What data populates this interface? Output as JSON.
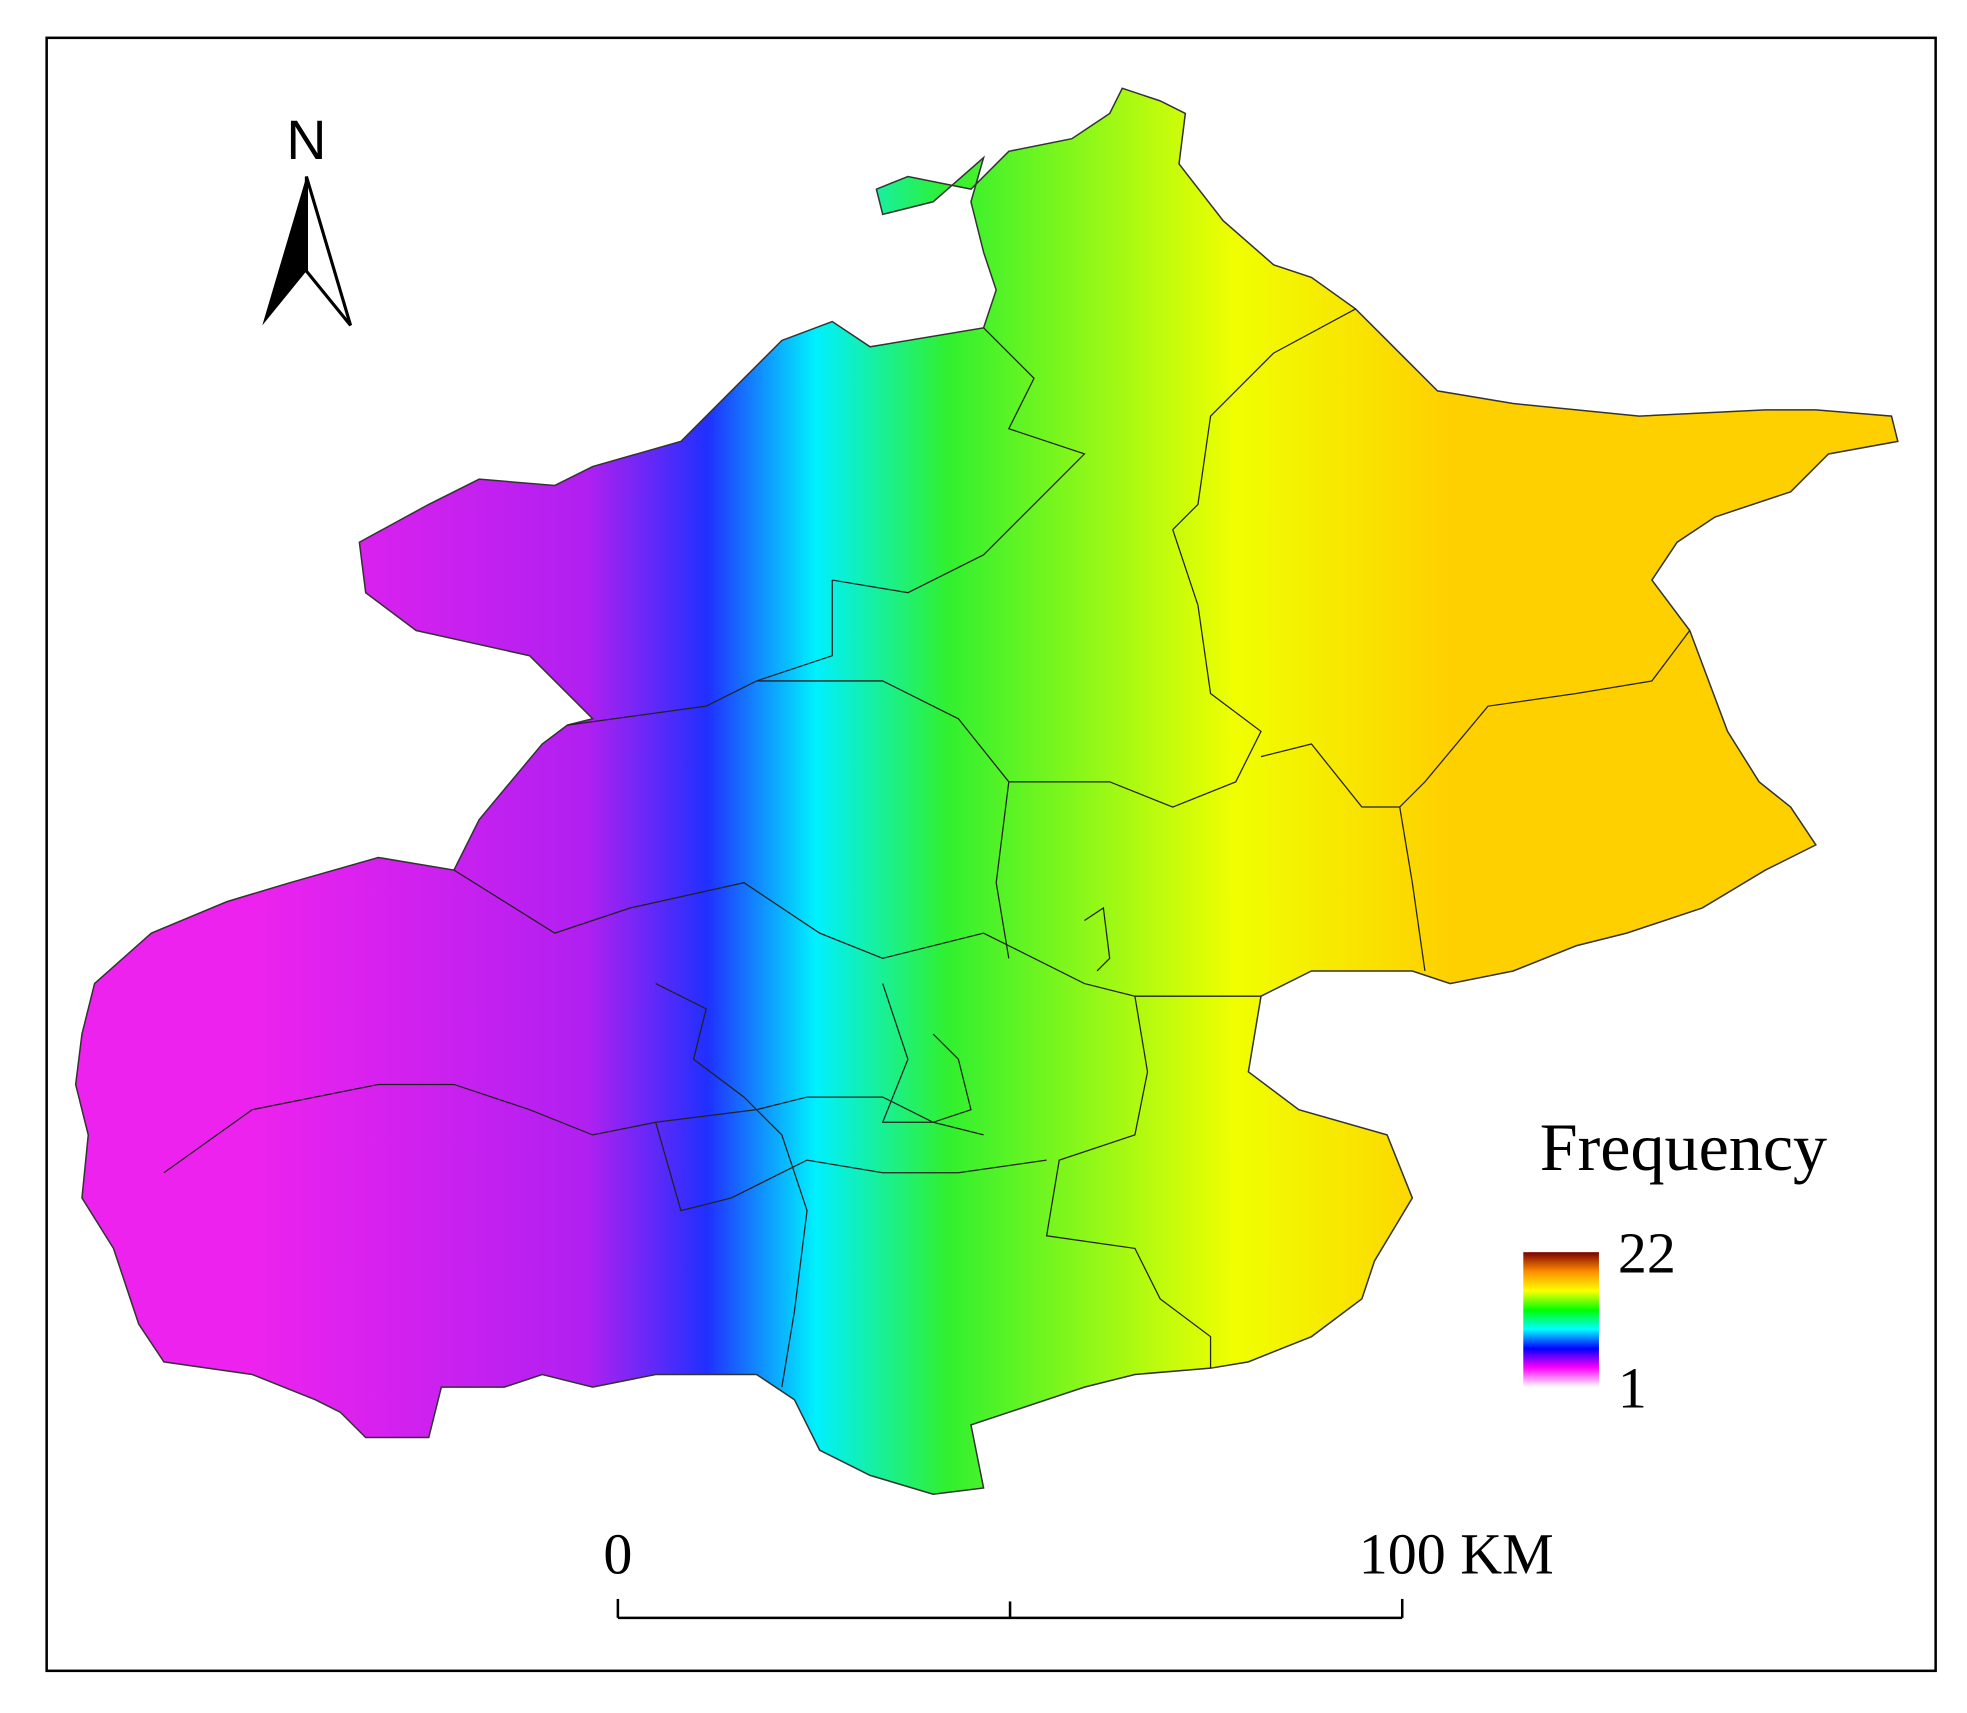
{
  "map": {
    "north_label": "N",
    "legend": {
      "title": "Frequency",
      "ticks": [
        22,
        1
      ],
      "colors": [
        "#7a0000",
        "#ff8c00",
        "#ffff00",
        "#00ff00",
        "#00ffff",
        "#0000ff",
        "#ff00ff",
        "#ffffff"
      ]
    },
    "scale_bar": {
      "ticks": [
        0,
        100
      ],
      "unit": "KM"
    }
  }
}
